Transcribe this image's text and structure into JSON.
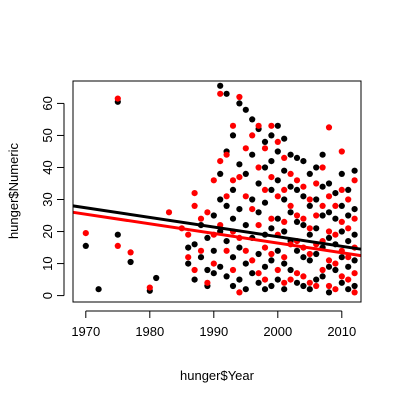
{
  "chart_data": {
    "type": "scatter",
    "title": "",
    "xlabel": "hunger$Year",
    "ylabel": "hunger$Numeric",
    "xlim": [
      1968,
      2013
    ],
    "ylim": [
      -2,
      67
    ],
    "x_ticks": [
      1970,
      1980,
      1990,
      2000,
      2010
    ],
    "y_ticks": [
      0,
      10,
      20,
      30,
      40,
      50,
      60
    ],
    "grid": false,
    "legend": "none",
    "series": [
      {
        "color": "#000000",
        "points": [
          [
            1970,
            15.5
          ],
          [
            1972,
            2
          ],
          [
            1975,
            60.5
          ],
          [
            1975,
            19
          ],
          [
            1977,
            10.5
          ],
          [
            1980,
            1.5
          ],
          [
            1981,
            5.5
          ],
          [
            1986,
            15
          ],
          [
            1986,
            10
          ],
          [
            1987,
            16
          ],
          [
            1987,
            5
          ],
          [
            1988,
            22
          ],
          [
            1988,
            12
          ],
          [
            1989,
            18
          ],
          [
            1989,
            8
          ],
          [
            1989,
            3
          ],
          [
            1990,
            25
          ],
          [
            1990,
            14
          ],
          [
            1990,
            7
          ],
          [
            1991,
            65.5
          ],
          [
            1991,
            38
          ],
          [
            1991,
            30
          ],
          [
            1991,
            20
          ],
          [
            1991,
            9
          ],
          [
            1992,
            63
          ],
          [
            1992,
            45
          ],
          [
            1992,
            28
          ],
          [
            1992,
            17
          ],
          [
            1992,
            6
          ],
          [
            1993,
            50
          ],
          [
            1993,
            33
          ],
          [
            1993,
            24
          ],
          [
            1993,
            12
          ],
          [
            1993,
            3
          ],
          [
            1994,
            60
          ],
          [
            1994,
            41
          ],
          [
            1994,
            27
          ],
          [
            1994,
            15
          ],
          [
            1994,
            5
          ],
          [
            1995,
            58
          ],
          [
            1995,
            38
          ],
          [
            1995,
            22
          ],
          [
            1995,
            10
          ],
          [
            1995,
            2
          ],
          [
            1996,
            55
          ],
          [
            1996,
            44
          ],
          [
            1996,
            30
          ],
          [
            1996,
            18
          ],
          [
            1996,
            7
          ],
          [
            1997,
            52
          ],
          [
            1997,
            35
          ],
          [
            1997,
            26
          ],
          [
            1997,
            13
          ],
          [
            1997,
            4
          ],
          [
            1998,
            48
          ],
          [
            1998,
            40
          ],
          [
            1998,
            29
          ],
          [
            1998,
            19
          ],
          [
            1998,
            9
          ],
          [
            1998,
            2
          ],
          [
            1999,
            50
          ],
          [
            1999,
            42
          ],
          [
            1999,
            33
          ],
          [
            1999,
            21
          ],
          [
            1999,
            11
          ],
          [
            1999,
            3
          ],
          [
            2000,
            53
          ],
          [
            2000,
            45
          ],
          [
            2000,
            36
          ],
          [
            2000,
            24
          ],
          [
            2000,
            14
          ],
          [
            2000,
            5
          ],
          [
            2001,
            49
          ],
          [
            2001,
            39
          ],
          [
            2001,
            30
          ],
          [
            2001,
            20
          ],
          [
            2001,
            10
          ],
          [
            2001,
            2
          ],
          [
            2002,
            44
          ],
          [
            2002,
            34
          ],
          [
            2002,
            26
          ],
          [
            2002,
            17
          ],
          [
            2002,
            8
          ],
          [
            2003,
            43
          ],
          [
            2003,
            33
          ],
          [
            2003,
            23
          ],
          [
            2003,
            14
          ],
          [
            2003,
            4
          ],
          [
            2004,
            42
          ],
          [
            2004,
            31
          ],
          [
            2004,
            22
          ],
          [
            2004,
            12
          ],
          [
            2004,
            3
          ],
          [
            2005,
            38
          ],
          [
            2005,
            28
          ],
          [
            2005,
            19
          ],
          [
            2005,
            11
          ],
          [
            2005,
            2
          ],
          [
            2006,
            40
          ],
          [
            2006,
            30
          ],
          [
            2006,
            21
          ],
          [
            2006,
            13
          ],
          [
            2006,
            5
          ],
          [
            2007,
            44
          ],
          [
            2007,
            34
          ],
          [
            2007,
            25
          ],
          [
            2007,
            15
          ],
          [
            2007,
            6
          ],
          [
            2008,
            35
          ],
          [
            2008,
            26
          ],
          [
            2008,
            18
          ],
          [
            2008,
            9
          ],
          [
            2008,
            1
          ],
          [
            2009,
            32
          ],
          [
            2009,
            24
          ],
          [
            2009,
            16
          ],
          [
            2009,
            8
          ],
          [
            2010,
            38
          ],
          [
            2010,
            28
          ],
          [
            2010,
            20
          ],
          [
            2010,
            12
          ],
          [
            2010,
            4
          ],
          [
            2011,
            33
          ],
          [
            2011,
            25
          ],
          [
            2011,
            17
          ],
          [
            2011,
            9
          ],
          [
            2011,
            2
          ],
          [
            2012,
            39
          ],
          [
            2012,
            27
          ],
          [
            2012,
            19
          ],
          [
            2012,
            11
          ],
          [
            2012,
            3
          ]
        ]
      },
      {
        "color": "#ff0000",
        "points": [
          [
            1970,
            19.5
          ],
          [
            1975,
            61.5
          ],
          [
            1975,
            15.5
          ],
          [
            1977,
            13.5
          ],
          [
            1980,
            2.5
          ],
          [
            1983,
            26
          ],
          [
            1985,
            21
          ],
          [
            1986,
            19
          ],
          [
            1986,
            12
          ],
          [
            1987,
            32
          ],
          [
            1987,
            28
          ],
          [
            1987,
            8
          ],
          [
            1988,
            24
          ],
          [
            1988,
            14
          ],
          [
            1989,
            26
          ],
          [
            1989,
            4
          ],
          [
            1990,
            36
          ],
          [
            1990,
            19
          ],
          [
            1990,
            10
          ],
          [
            1991,
            63
          ],
          [
            1991,
            42
          ],
          [
            1991,
            22
          ],
          [
            1992,
            44
          ],
          [
            1992,
            31
          ],
          [
            1992,
            14
          ],
          [
            1993,
            53
          ],
          [
            1993,
            36
          ],
          [
            1993,
            20
          ],
          [
            1993,
            8
          ],
          [
            1994,
            62
          ],
          [
            1994,
            37
          ],
          [
            1994,
            18
          ],
          [
            1994,
            1
          ],
          [
            1995,
            46
          ],
          [
            1995,
            31
          ],
          [
            1995,
            14
          ],
          [
            1996,
            50
          ],
          [
            1996,
            27
          ],
          [
            1996,
            11
          ],
          [
            1997,
            53
          ],
          [
            1997,
            40
          ],
          [
            1997,
            22
          ],
          [
            1997,
            7
          ],
          [
            1998,
            46
          ],
          [
            1998,
            33
          ],
          [
            1998,
            15
          ],
          [
            1998,
            5
          ],
          [
            1999,
            53
          ],
          [
            1999,
            37
          ],
          [
            1999,
            24
          ],
          [
            1999,
            13
          ],
          [
            2000,
            48
          ],
          [
            2000,
            31
          ],
          [
            2000,
            19
          ],
          [
            2000,
            8
          ],
          [
            2001,
            43
          ],
          [
            2001,
            33
          ],
          [
            2001,
            23
          ],
          [
            2001,
            12
          ],
          [
            2001,
            4
          ],
          [
            2002,
            38
          ],
          [
            2002,
            28
          ],
          [
            2002,
            16
          ],
          [
            2002,
            5
          ],
          [
            2003,
            36
          ],
          [
            2003,
            25
          ],
          [
            2003,
            17
          ],
          [
            2003,
            7
          ],
          [
            2004,
            34
          ],
          [
            2004,
            24
          ],
          [
            2004,
            15
          ],
          [
            2004,
            6
          ],
          [
            2005,
            30
          ],
          [
            2005,
            21
          ],
          [
            2005,
            13
          ],
          [
            2005,
            4
          ],
          [
            2006,
            35
          ],
          [
            2006,
            25
          ],
          [
            2006,
            16
          ],
          [
            2006,
            3
          ],
          [
            2007,
            40
          ],
          [
            2007,
            28
          ],
          [
            2007,
            17
          ],
          [
            2007,
            8
          ],
          [
            2008,
            52.5
          ],
          [
            2008,
            31
          ],
          [
            2008,
            20
          ],
          [
            2008,
            11
          ],
          [
            2008,
            3
          ],
          [
            2009,
            28
          ],
          [
            2009,
            19
          ],
          [
            2009,
            10
          ],
          [
            2009,
            2
          ],
          [
            2010,
            45
          ],
          [
            2010,
            33
          ],
          [
            2010,
            23
          ],
          [
            2010,
            14
          ],
          [
            2010,
            6
          ],
          [
            2011,
            30
          ],
          [
            2011,
            21
          ],
          [
            2011,
            12
          ],
          [
            2011,
            5
          ],
          [
            2012,
            36
          ],
          [
            2012,
            24
          ],
          [
            2012,
            15
          ],
          [
            2012,
            7
          ],
          [
            2012,
            1
          ]
        ]
      }
    ],
    "lines": [
      {
        "color": "#000000",
        "from": [
          1968,
          28
        ],
        "to": [
          2013,
          14.5
        ]
      },
      {
        "color": "#ff0000",
        "from": [
          1968,
          26
        ],
        "to": [
          2013,
          12.5
        ]
      }
    ]
  }
}
